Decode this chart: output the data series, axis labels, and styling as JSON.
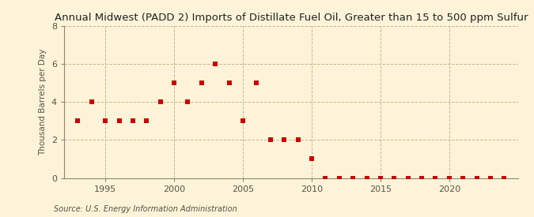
{
  "title": "Annual Midwest (PADD 2) Imports of Distillate Fuel Oil, Greater than 15 to 500 ppm Sulfur",
  "ylabel": "Thousand Barrels per Day",
  "source": "Source: U.S. Energy Information Administration",
  "background_color": "#fdf3d8",
  "plot_bg_color": "#fdf3d8",
  "marker_color": "#cc0000",
  "years": [
    1993,
    1994,
    1995,
    1996,
    1997,
    1998,
    1999,
    2000,
    2001,
    2002,
    2003,
    2004,
    2005,
    2006,
    2007,
    2008,
    2009,
    2010,
    2011,
    2012,
    2013,
    2014,
    2015,
    2016,
    2017,
    2018,
    2019,
    2020,
    2021,
    2022,
    2023,
    2024
  ],
  "values": [
    3,
    4,
    3,
    3,
    3,
    3,
    4,
    5,
    4,
    5,
    6,
    5,
    3,
    5,
    2,
    2,
    2,
    1,
    0,
    0,
    0,
    0,
    0,
    0,
    0,
    0,
    0,
    0,
    0,
    0,
    0,
    0
  ],
  "xlim": [
    1992,
    2025
  ],
  "ylim": [
    0,
    8
  ],
  "yticks": [
    0,
    2,
    4,
    6,
    8
  ],
  "xticks": [
    1995,
    2000,
    2005,
    2010,
    2015,
    2020
  ],
  "title_fontsize": 9.5,
  "ylabel_fontsize": 7.5,
  "tick_fontsize": 8,
  "source_fontsize": 7,
  "grid_color": "#c8b88a",
  "spine_color": "#888877",
  "tick_color": "#555544",
  "marker_size": 15
}
